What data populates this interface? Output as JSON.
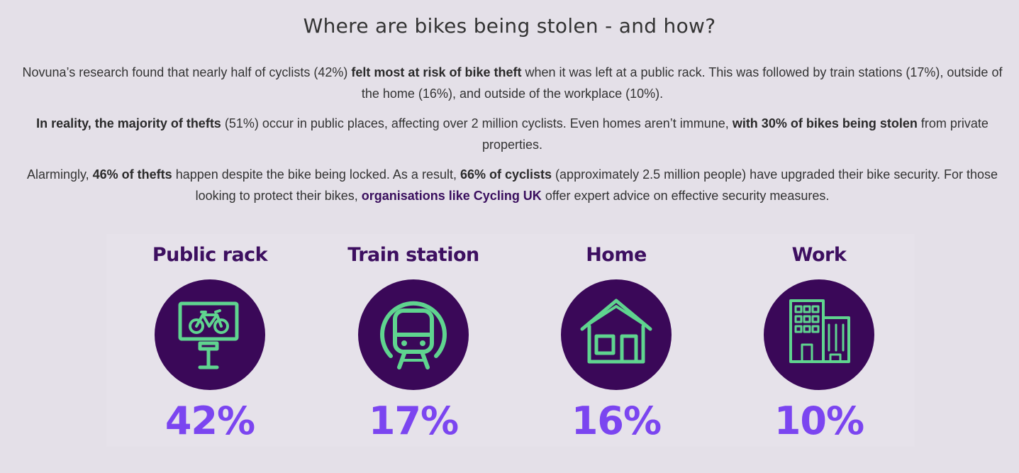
{
  "heading": "Where are bikes being stolen - and how?",
  "paragraphs": {
    "p1": {
      "a": "Novuna’s research found that nearly half of cyclists (42%) ",
      "b": "felt most at risk of bike theft",
      "c": " when it was left at a public rack. This was followed by train stations (17%), outside of the home (16%), and outside of the workplace (10%)."
    },
    "p2": {
      "a": "In reality, the majority of thefts",
      "b": " (51%) occur in public places, affecting over 2 million cyclists. Even homes aren’t immune, ",
      "c": "with 30% of bikes being stolen",
      "d": " from private properties."
    },
    "p3": {
      "a": "Alarmingly, ",
      "b": "46% of thefts",
      "c": " happen despite the bike being locked. As a result, ",
      "d": "66% of cyclists",
      "e": " (approximately 2.5 million people) have upgraded their bike security. For those looking to protect their bikes, ",
      "link": "organisations like Cycling UK",
      "f": " offer expert advice on effective security measures."
    }
  },
  "stats": [
    {
      "label": "Public rack",
      "value": "42%",
      "icon": "bike-rack-icon"
    },
    {
      "label": "Train station",
      "value": "17%",
      "icon": "train-icon"
    },
    {
      "label": "Home",
      "value": "16%",
      "icon": "house-icon"
    },
    {
      "label": "Work",
      "value": "10%",
      "icon": "office-building-icon"
    }
  ],
  "colors": {
    "background": "#e4e0e8",
    "circle": "#3a0858",
    "icon_stroke": "#5fd48f",
    "label": "#3d0f60",
    "value": "#7b45f0",
    "link": "#3a0f5e"
  }
}
